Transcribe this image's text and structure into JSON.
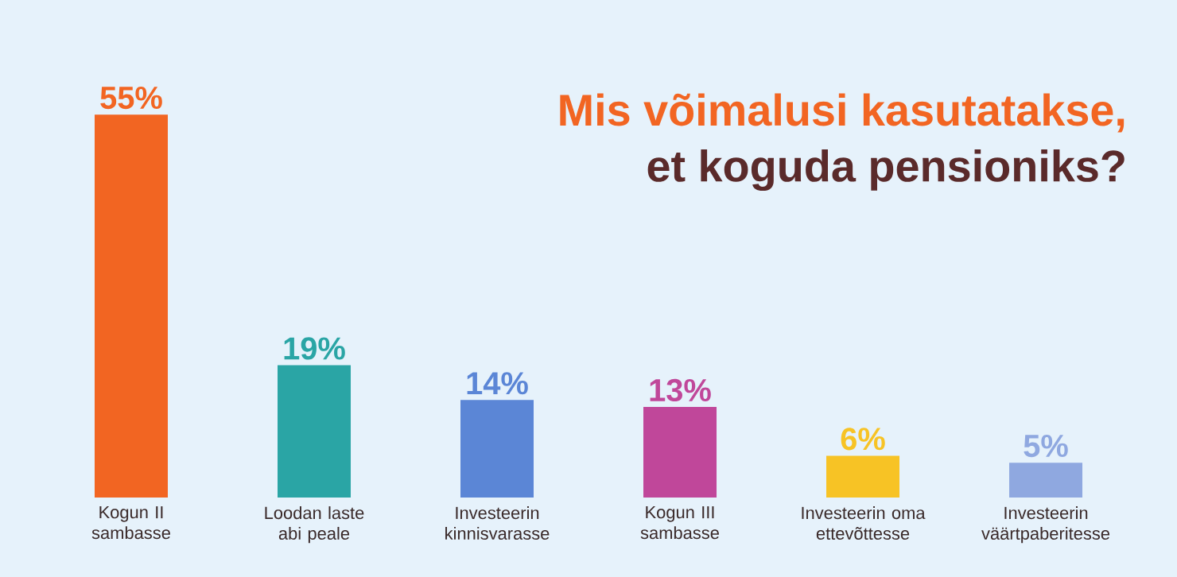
{
  "chart_data": {
    "type": "bar",
    "title": "Mis võimalusi kasutatakse,",
    "subtitle": "et koguda pensioniks?",
    "categories": [
      "Kogun II sambasse",
      "Loodan laste abi peale",
      "Investeerin kinnisvarasse",
      "Kogun III sambasse",
      "Investeerin oma ettevõttesse",
      "Investeerin väärtpaberitesse"
    ],
    "values": [
      55,
      19,
      14,
      13,
      6,
      5
    ],
    "value_labels": [
      "55%",
      "19%",
      "14%",
      "13%",
      "6%",
      "5%"
    ],
    "colors": [
      "#f26522",
      "#2aa5a5",
      "#5b86d6",
      "#c0479a",
      "#f7c325",
      "#8fa8e0"
    ]
  }
}
